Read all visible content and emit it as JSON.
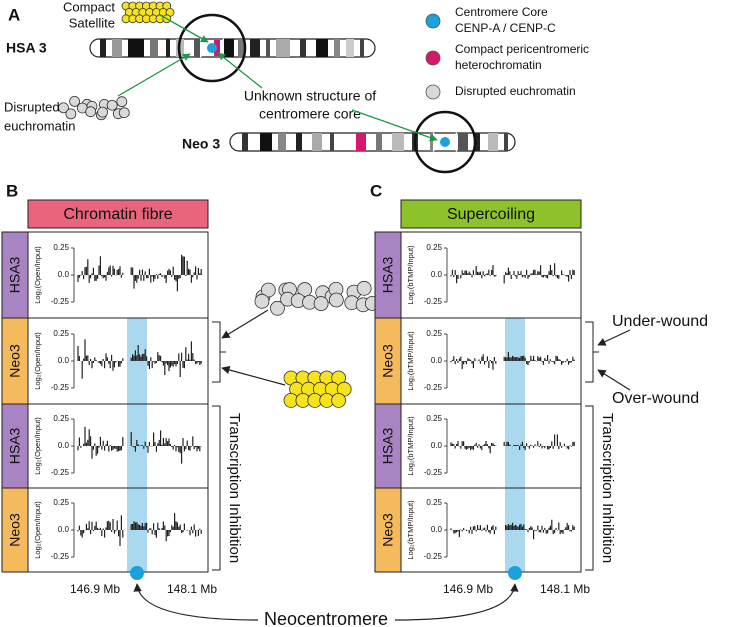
{
  "panel_letters": [
    "A",
    "B",
    "C"
  ],
  "panel_a": {
    "compact_satellite": [
      "Compact",
      "Satellite"
    ],
    "hsa3": "HSA 3",
    "disrupted": [
      "Disrupted",
      "euchromatin"
    ],
    "unknown": [
      "Unknown structure of",
      "centromere core"
    ],
    "neo3": "Neo 3",
    "legend": [
      {
        "label": [
          "Centromere Core",
          "CENP-A / CENP-C"
        ],
        "color": "#1ba1dc"
      },
      {
        "label": [
          "Compact pericentromeric",
          "heterochromatin"
        ],
        "color": "#d6186a"
      },
      {
        "label": [
          "Disrupted euchromatin"
        ],
        "color": "#d9d9d9"
      }
    ]
  },
  "panel_b": {
    "title": "Chromatin fibre",
    "title_color": "#e8657c",
    "y_label": "Log₂(Open/Input)",
    "tracks": [
      {
        "label": "HSA3",
        "color": "#a884c2"
      },
      {
        "label": "Neo3",
        "color": "#f5b95e"
      },
      {
        "label": "HSA3",
        "color": "#a884c2"
      },
      {
        "label": "Neo3",
        "color": "#f5b95e"
      }
    ],
    "yticks": [
      "0.25",
      "0.0",
      "-0.25"
    ],
    "x_labels": [
      "146.9 Mb",
      "148.1 Mb"
    ],
    "group_label": "Transcription Inhibition"
  },
  "panel_c": {
    "title": "Supercoiling",
    "title_color": "#8dc22b",
    "y_label": "Log₂(bTMP/Input)",
    "tracks": [
      {
        "label": "HSA3",
        "color": "#a884c2"
      },
      {
        "label": "Neo3",
        "color": "#f5b95e"
      },
      {
        "label": "HSA3",
        "color": "#a884c2"
      },
      {
        "label": "Neo3",
        "color": "#f5b95e"
      }
    ],
    "yticks": [
      "0.25",
      "0.0",
      "-0.25"
    ],
    "x_labels": [
      "146.9 Mb",
      "148.1 Mb"
    ],
    "group_label": "Transcription Inhibition",
    "under_wound": "Under-wound",
    "over_wound": "Over-wound"
  },
  "neocentromere": "Neocentromere"
}
